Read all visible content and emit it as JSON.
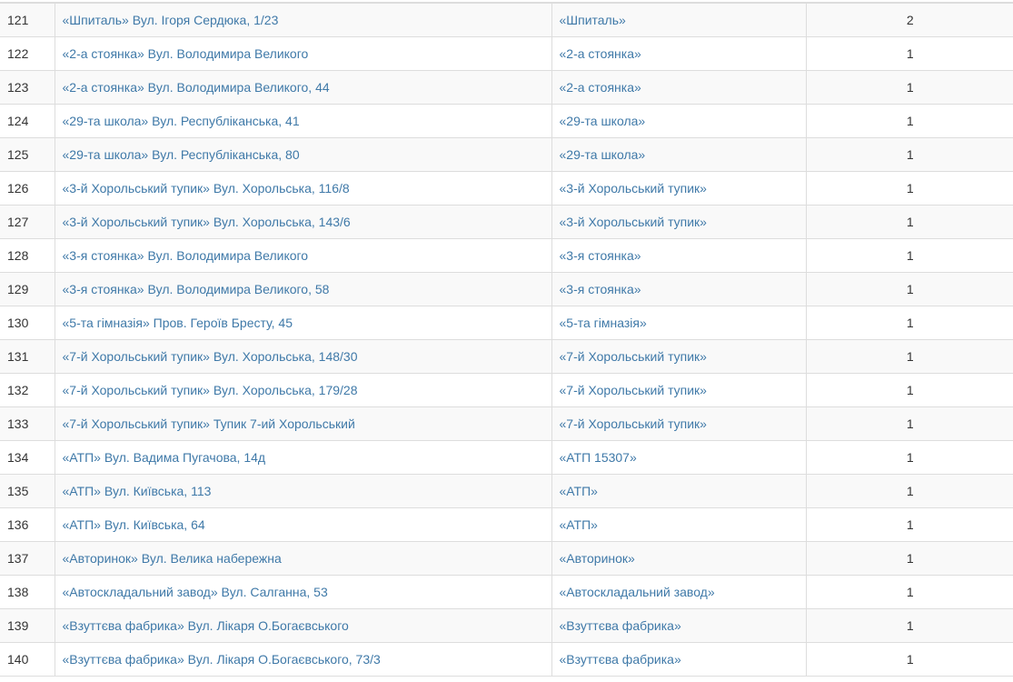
{
  "table": {
    "link_color": "#3f79a8",
    "rows": [
      {
        "num": "121",
        "address": "«Шпиталь» Вул. Ігоря Сердюка, 1/23",
        "stop": "«Шпиталь»",
        "count": "2"
      },
      {
        "num": "122",
        "address": "«2-а стоянка» Вул. Володимира Великого",
        "stop": "«2-а стоянка»",
        "count": "1"
      },
      {
        "num": "123",
        "address": "«2-а стоянка» Вул. Володимира Великого, 44",
        "stop": "«2-а стоянка»",
        "count": "1"
      },
      {
        "num": "124",
        "address": "«29-та школа» Вул. Республіканська, 41",
        "stop": "«29-та школа»",
        "count": "1"
      },
      {
        "num": "125",
        "address": "«29-та школа» Вул. Республіканська, 80",
        "stop": "«29-та школа»",
        "count": "1"
      },
      {
        "num": "126",
        "address": "«3-й Хорольський тупик» Вул. Хорольська, 116/8",
        "stop": "«3-й Хорольський тупик»",
        "count": "1"
      },
      {
        "num": "127",
        "address": "«3-й Хорольський тупик» Вул. Хорольська, 143/6",
        "stop": "«3-й Хорольський тупик»",
        "count": "1"
      },
      {
        "num": "128",
        "address": "«3-я стоянка» Вул. Володимира Великого",
        "stop": "«3-я стоянка»",
        "count": "1"
      },
      {
        "num": "129",
        "address": "«3-я стоянка» Вул. Володимира Великого, 58",
        "stop": "«3-я стоянка»",
        "count": "1"
      },
      {
        "num": "130",
        "address": "«5-та гімназія» Пров. Героїв Бресту, 45",
        "stop": "«5-та гімназія»",
        "count": "1"
      },
      {
        "num": "131",
        "address": "«7-й Хорольський тупик» Вул. Хорольська, 148/30",
        "stop": "«7-й Хорольський тупик»",
        "count": "1"
      },
      {
        "num": "132",
        "address": "«7-й Хорольський тупик» Вул. Хорольська, 179/28",
        "stop": "«7-й Хорольський тупик»",
        "count": "1"
      },
      {
        "num": "133",
        "address": "«7-й Хорольський тупик» Тупик 7-ий Хорольський",
        "stop": "«7-й Хорольський тупик»",
        "count": "1"
      },
      {
        "num": "134",
        "address": "«АТП» Вул. Вадима Пугачова, 14д",
        "stop": "«АТП 15307»",
        "count": "1"
      },
      {
        "num": "135",
        "address": "«АТП» Вул. Київська, 113",
        "stop": "«АТП»",
        "count": "1"
      },
      {
        "num": "136",
        "address": "«АТП» Вул. Київська, 64",
        "stop": "«АТП»",
        "count": "1"
      },
      {
        "num": "137",
        "address": "«Авторинок» Вул. Велика набережна",
        "stop": "«Авторинок»",
        "count": "1"
      },
      {
        "num": "138",
        "address": "«Автоскладальний завод» Вул. Салганна, 53",
        "stop": "«Автоскладальний завод»",
        "count": "1"
      },
      {
        "num": "139",
        "address": "«Взуттєва фабрика» Вул. Лікаря О.Богаєвського",
        "stop": "«Взуттєва фабрика»",
        "count": "1"
      },
      {
        "num": "140",
        "address": "«Взуттєва фабрика» Вул. Лікаря О.Богаєвського, 73/3",
        "stop": "«Взуттєва фабрика»",
        "count": "1"
      }
    ]
  }
}
